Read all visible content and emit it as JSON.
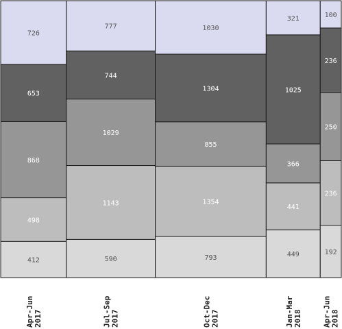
{
  "chart_data": {
    "type": "mekko",
    "categories": [
      {
        "line1": "Apr-Jun",
        "line2": "2017"
      },
      {
        "line1": "Jul-Sep",
        "line2": "2017"
      },
      {
        "line1": "Oct-Dec",
        "line2": "2017"
      },
      {
        "line1": "Jan-Mar",
        "line2": "2018"
      },
      {
        "line1": "Apr-Jun",
        "line2": "2018"
      }
    ],
    "series": [
      {
        "values": [
          412,
          590,
          793,
          449,
          192
        ],
        "color": "#d9d9d9",
        "text_color": "#555555"
      },
      {
        "values": [
          498,
          1143,
          1354,
          441,
          236
        ],
        "color": "#bdbdbd",
        "text_color": "#ffffff"
      },
      {
        "values": [
          868,
          1029,
          855,
          366,
          250
        ],
        "color": "#969696",
        "text_color": "#ffffff"
      },
      {
        "values": [
          653,
          744,
          1304,
          1025,
          236
        ],
        "color": "#616161",
        "text_color": "#ffffff"
      },
      {
        "values": [
          726,
          777,
          1030,
          321,
          100
        ],
        "color": "#dadaf0",
        "text_color": "#555555"
      }
    ],
    "grid": false,
    "legend": "none"
  }
}
